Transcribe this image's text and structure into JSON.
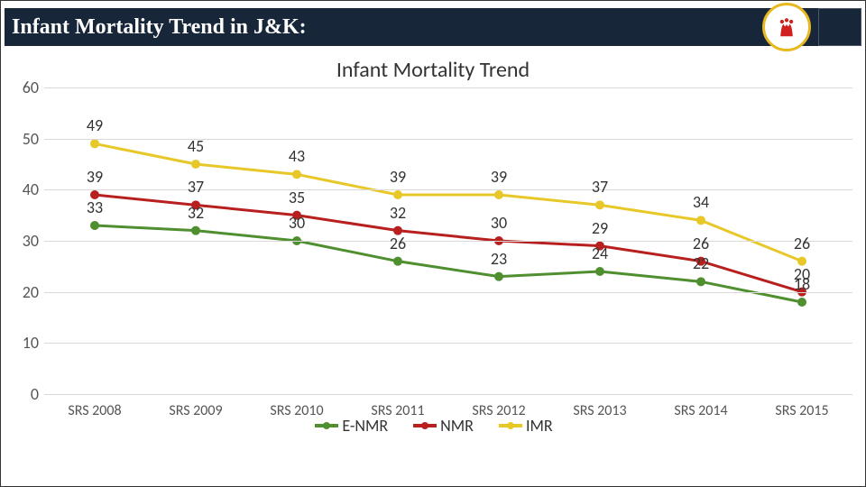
{
  "header": {
    "title": "Infant Mortality Trend in J&K:"
  },
  "chart": {
    "title": "Infant Mortality Trend",
    "type": "line",
    "ylim": [
      0,
      60
    ],
    "ytick_step": 10,
    "yticks": [
      0,
      10,
      20,
      30,
      40,
      50,
      60
    ],
    "categories": [
      "SRS 2008",
      "SRS 2009",
      "SRS 2010",
      "SRS 2011",
      "SRS 2012",
      "SRS 2013",
      "SRS 2014",
      "SRS 2015"
    ],
    "grid_color": "#d9d9d9",
    "background_color": "#ffffff",
    "label_fontsize": 18,
    "title_fontsize": 24,
    "line_width": 3,
    "marker_size": 5,
    "series": [
      {
        "name": "E-NMR",
        "color": "#4f8f2f",
        "values": [
          33,
          32,
          30,
          26,
          23,
          24,
          22,
          18
        ]
      },
      {
        "name": "NMR",
        "color": "#b82020",
        "values": [
          39,
          37,
          35,
          32,
          30,
          29,
          26,
          20
        ]
      },
      {
        "name": "IMR",
        "color": "#e8c828",
        "values": [
          49,
          45,
          43,
          39,
          39,
          37,
          34,
          26
        ]
      }
    ],
    "legend_position": "bottom"
  }
}
